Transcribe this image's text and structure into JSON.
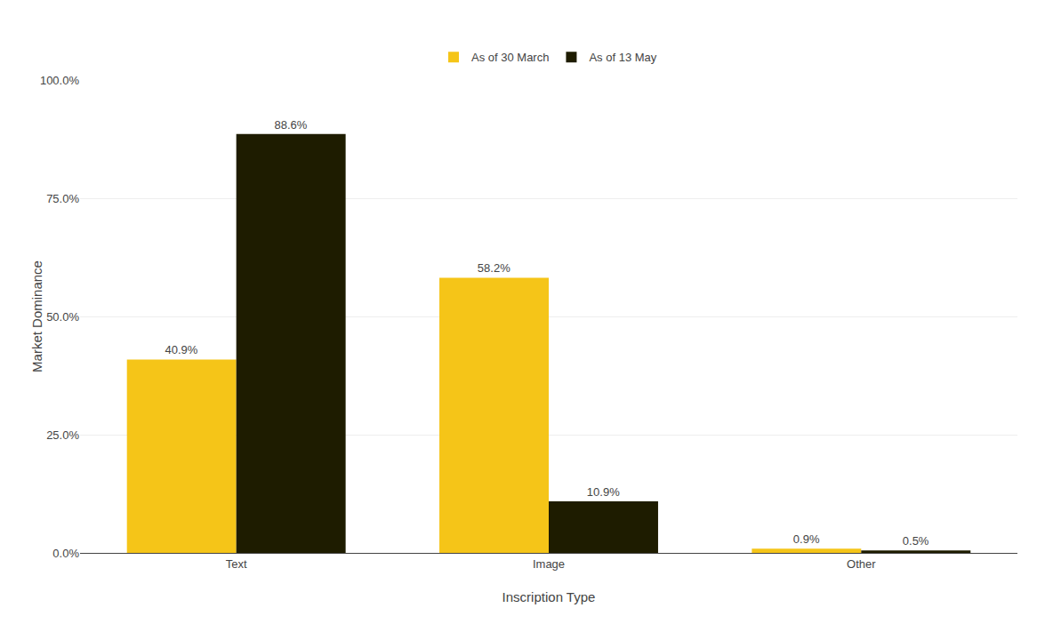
{
  "chart_data": {
    "type": "bar",
    "xlabel": "Inscription Type",
    "ylabel": "Market Dominance",
    "categories": [
      "Text",
      "Image",
      "Other"
    ],
    "series": [
      {
        "name": "As of 30 March",
        "color": "#F5C518",
        "values": [
          40.9,
          58.2,
          0.9
        ],
        "value_labels": [
          "40.9%",
          "58.2%",
          "0.9%"
        ]
      },
      {
        "name": "As of 13 May",
        "color": "#1E1C00",
        "values": [
          88.6,
          10.9,
          0.5
        ],
        "value_labels": [
          "88.6%",
          "10.9%",
          "0.5%"
        ]
      }
    ],
    "ylim": [
      0,
      100
    ],
    "yticks": [
      {
        "value": 0,
        "label": "0.0%"
      },
      {
        "value": 25,
        "label": "25.0%"
      },
      {
        "value": 50,
        "label": "50.0%"
      },
      {
        "value": 75,
        "label": "75.0%"
      },
      {
        "value": 100,
        "label": "100.0%"
      }
    ],
    "grid": true,
    "legend": "top",
    "data_labels": true
  }
}
